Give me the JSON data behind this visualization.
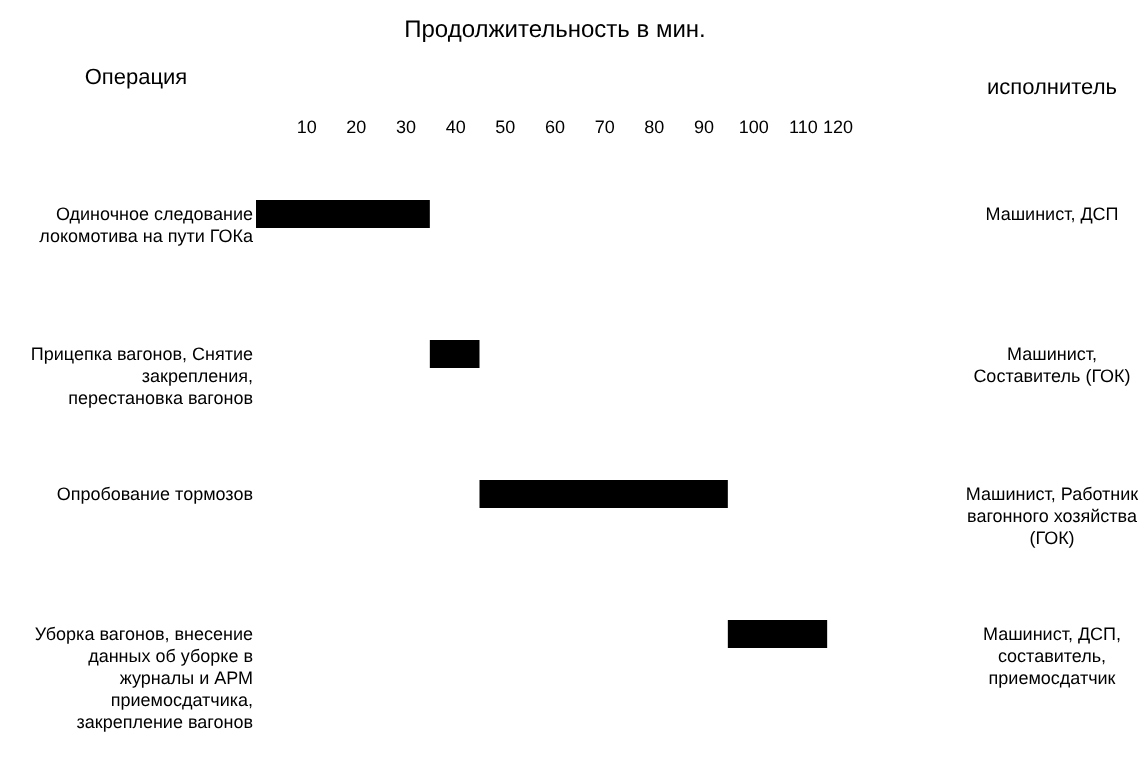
{
  "chart_data": {
    "type": "bar",
    "orientation": "horizontal",
    "xlabel": "Продолжительность в мин.",
    "ylabel": "Операция",
    "annotations": [
      "исполнитель"
    ],
    "categories": [
      "Одиночное следование локомотива на пути ГОКа",
      "Прицепка вагонов, Снятие закрепления, перестановка вагонов",
      "Опробование тормозов",
      "Уборка вагонов, внесение данных об уборке в журналы и АРМ приемосдатчика, закрепление вагонов"
    ],
    "y2_categories": [
      "Машинист, ДСП",
      "Машинист, Составитель (ГОК)",
      "Машинист, Работник вагонного хозяйства (ГОК)",
      "Машинист, ДСП, составитель, приемосдатчик"
    ],
    "base": [
      0,
      35,
      45,
      95
    ],
    "values": [
      35,
      10,
      50,
      20
    ],
    "color": "#000000",
    "xlim": [
      0,
      120
    ],
    "xticks": [
      10,
      20,
      30,
      40,
      50,
      60,
      70,
      80,
      90,
      100,
      110,
      120
    ],
    "grid": false
  }
}
